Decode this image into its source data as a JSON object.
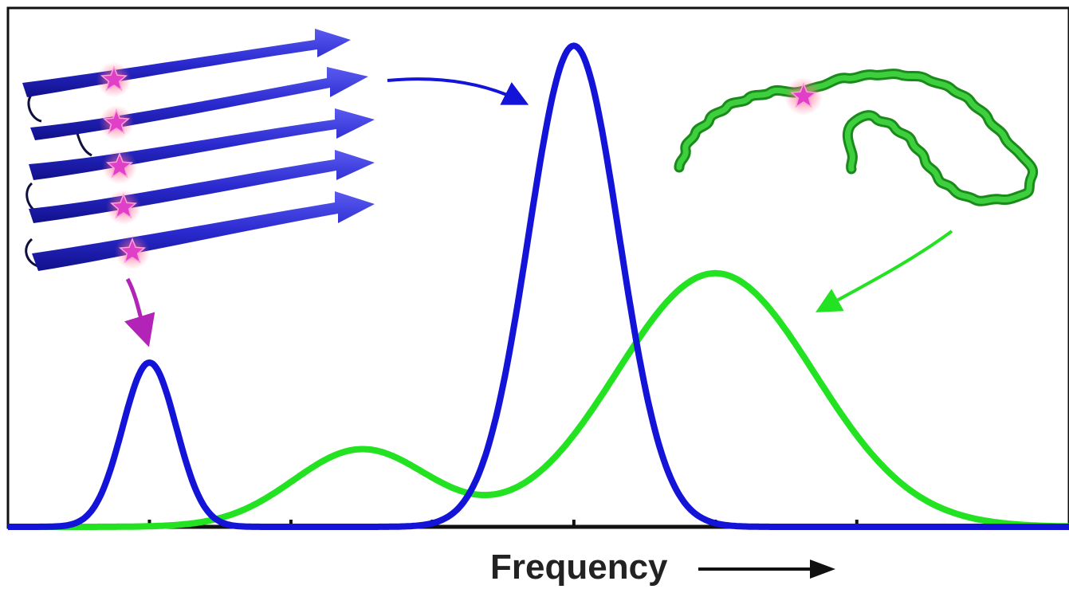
{
  "chart_data": {
    "type": "line",
    "title": "",
    "xlabel": "Frequency",
    "ylabel": "",
    "xlim": [
      0,
      7.5
    ],
    "ylim": [
      0,
      1.0
    ],
    "x_ticks": [
      1,
      2,
      3,
      4,
      5,
      6
    ],
    "x_tick_labels": [],
    "grid": false,
    "legend": "none",
    "series": [
      {
        "color": "#1414d8",
        "structure": "beta-sheet",
        "components": [
          {
            "center": 1.0,
            "amplitude": 0.34,
            "width": 0.19
          },
          {
            "center": 4.0,
            "amplitude": 0.996,
            "width": 0.32
          }
        ]
      },
      {
        "color": "#22e222",
        "structure": "random-coil",
        "components": [
          {
            "center": 2.5,
            "amplitude": 0.16,
            "width": 0.48
          },
          {
            "center": 5.0,
            "amplitude": 0.525,
            "width": 0.7
          }
        ]
      }
    ]
  },
  "colors": {
    "blue": "#1414d8",
    "green": "#22e222",
    "marker": "#e040c8",
    "axis": "#111111"
  },
  "icons": {
    "beta_sheet": "beta-sheet-ribbon-icon",
    "random_coil": "random-coil-icon",
    "label_marker": "star-icon"
  }
}
